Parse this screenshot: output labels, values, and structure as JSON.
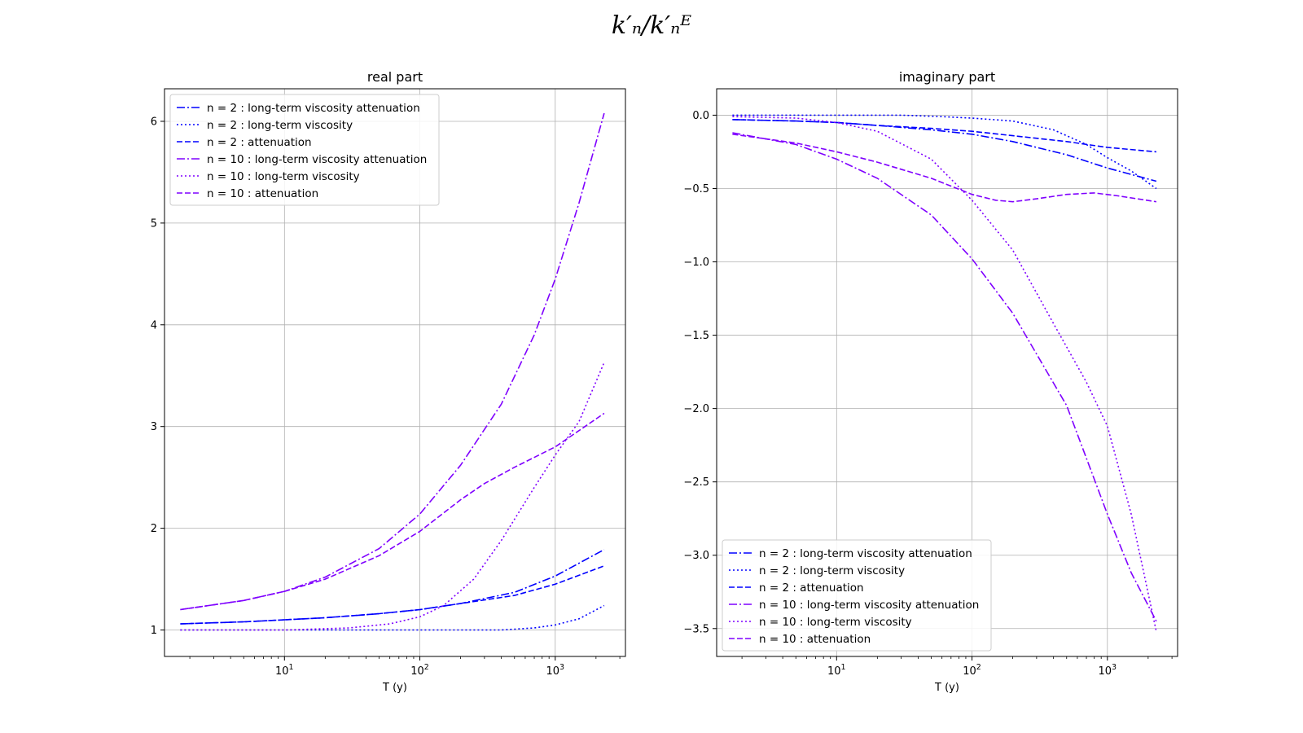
{
  "figure": {
    "suptitle": "k′ₙ/k′ₙᴱ"
  },
  "chart_data": [
    {
      "type": "line",
      "title": "real part",
      "xlabel": "T (y)",
      "ylabel": "",
      "xscale": "log",
      "xlim": [
        1.3,
        3300
      ],
      "ylim": [
        0.74,
        6.32
      ],
      "xticks": [
        {
          "value": 10,
          "base": "10",
          "exp": "1"
        },
        {
          "value": 100,
          "base": "10",
          "exp": "2"
        },
        {
          "value": 1000,
          "base": "10",
          "exp": "3"
        }
      ],
      "yticks": [
        1,
        2,
        3,
        4,
        5,
        6
      ],
      "grid": true,
      "legend_loc": "upper left",
      "series": [
        {
          "name": "n = 2 : long-term viscosity attenuation",
          "color": "#0000ff",
          "dash": "dashdot",
          "x": [
            1.7,
            5,
            10,
            20,
            50,
            100,
            200,
            500,
            1000,
            2300
          ],
          "y": [
            1.06,
            1.08,
            1.1,
            1.12,
            1.16,
            1.2,
            1.26,
            1.37,
            1.53,
            1.79
          ]
        },
        {
          "name": "n = 2 : long-term viscosity",
          "color": "#0000ff",
          "dash": "dotted",
          "x": [
            1.7,
            10,
            50,
            100,
            200,
            400,
            700,
            1000,
            1500,
            2300
          ],
          "y": [
            1.0,
            1.0,
            1.0,
            1.0,
            1.0,
            1.0,
            1.02,
            1.05,
            1.11,
            1.24
          ]
        },
        {
          "name": "n = 2 :  attenuation",
          "color": "#0000ff",
          "dash": "dashed",
          "x": [
            1.7,
            5,
            10,
            20,
            50,
            100,
            200,
            500,
            1000,
            2300
          ],
          "y": [
            1.06,
            1.08,
            1.1,
            1.12,
            1.16,
            1.2,
            1.26,
            1.34,
            1.45,
            1.63
          ]
        },
        {
          "name": "n = 10 : long-term viscosity attenuation",
          "color": "#7f00ff",
          "dash": "dashdot",
          "x": [
            1.7,
            5,
            10,
            20,
            50,
            100,
            200,
            400,
            700,
            1000,
            1500,
            2300
          ],
          "y": [
            1.2,
            1.29,
            1.38,
            1.52,
            1.8,
            2.14,
            2.62,
            3.22,
            3.9,
            4.45,
            5.2,
            6.08
          ]
        },
        {
          "name": "n = 10 : long-term viscosity",
          "color": "#7f00ff",
          "dash": "dotted",
          "x": [
            1.7,
            10,
            30,
            60,
            100,
            150,
            250,
            400,
            700,
            1000,
            1500,
            2300
          ],
          "y": [
            1.0,
            1.0,
            1.02,
            1.06,
            1.13,
            1.24,
            1.5,
            1.88,
            2.4,
            2.72,
            3.05,
            3.63
          ]
        },
        {
          "name": "n = 10 :  attenuation",
          "color": "#7f00ff",
          "dash": "dashed",
          "x": [
            1.7,
            5,
            10,
            20,
            50,
            100,
            200,
            300,
            500,
            1000,
            2300
          ],
          "y": [
            1.2,
            1.29,
            1.38,
            1.5,
            1.73,
            1.97,
            2.28,
            2.44,
            2.6,
            2.8,
            3.13
          ]
        }
      ]
    },
    {
      "type": "line",
      "title": "imaginary part",
      "xlabel": "T (y)",
      "ylabel": "",
      "xscale": "log",
      "xlim": [
        1.3,
        3300
      ],
      "ylim": [
        -3.69,
        0.18
      ],
      "xticks": [
        {
          "value": 10,
          "base": "10",
          "exp": "1"
        },
        {
          "value": 100,
          "base": "10",
          "exp": "2"
        },
        {
          "value": 1000,
          "base": "10",
          "exp": "3"
        }
      ],
      "yticks": [
        {
          "value": 0.0,
          "label": "0.0"
        },
        {
          "value": -0.5,
          "label": "−0.5"
        },
        {
          "value": -1.0,
          "label": "−1.0"
        },
        {
          "value": -1.5,
          "label": "−1.5"
        },
        {
          "value": -2.0,
          "label": "−2.0"
        },
        {
          "value": -2.5,
          "label": "−2.5"
        },
        {
          "value": -3.0,
          "label": "−3.0"
        },
        {
          "value": -3.5,
          "label": "−3.5"
        }
      ],
      "grid": true,
      "legend_loc": "lower left",
      "series": [
        {
          "name": "n = 2 : long-term viscosity attenuation",
          "color": "#0000ff",
          "dash": "dashdot",
          "x": [
            1.7,
            5,
            10,
            20,
            50,
            100,
            200,
            500,
            1000,
            2300
          ],
          "y": [
            -0.03,
            -0.04,
            -0.05,
            -0.07,
            -0.1,
            -0.13,
            -0.18,
            -0.27,
            -0.36,
            -0.45
          ]
        },
        {
          "name": "n = 2 : long-term viscosity",
          "color": "#0000ff",
          "dash": "dotted",
          "x": [
            1.7,
            10,
            30,
            60,
            100,
            200,
            400,
            700,
            1000,
            1500,
            2300
          ],
          "y": [
            0.0,
            0.0,
            0.0,
            -0.01,
            -0.02,
            -0.04,
            -0.1,
            -0.2,
            -0.29,
            -0.38,
            -0.5
          ]
        },
        {
          "name": "n = 2 :  attenuation",
          "color": "#0000ff",
          "dash": "dashed",
          "x": [
            1.7,
            5,
            10,
            20,
            50,
            100,
            200,
            500,
            1000,
            2300
          ],
          "y": [
            -0.03,
            -0.04,
            -0.05,
            -0.07,
            -0.09,
            -0.11,
            -0.14,
            -0.18,
            -0.22,
            -0.25
          ]
        },
        {
          "name": "n = 10 : long-term viscosity attenuation",
          "color": "#7f00ff",
          "dash": "dashdot",
          "x": [
            1.7,
            5,
            10,
            20,
            50,
            100,
            200,
            500,
            1000,
            1500,
            2300
          ],
          "y": [
            -0.12,
            -0.2,
            -0.3,
            -0.43,
            -0.68,
            -0.98,
            -1.35,
            -1.98,
            -2.72,
            -3.12,
            -3.45
          ]
        },
        {
          "name": "n = 10 : long-term viscosity",
          "color": "#7f00ff",
          "dash": "dotted",
          "x": [
            1.7,
            5,
            10,
            20,
            50,
            100,
            200,
            400,
            700,
            1000,
            1500,
            2300
          ],
          "y": [
            -0.01,
            -0.02,
            -0.05,
            -0.11,
            -0.3,
            -0.58,
            -0.92,
            -1.42,
            -1.82,
            -2.12,
            -2.72,
            -3.52
          ]
        },
        {
          "name": "n = 10 :  attenuation",
          "color": "#7f00ff",
          "dash": "dashed",
          "x": [
            1.7,
            5,
            10,
            20,
            50,
            100,
            150,
            200,
            300,
            500,
            800,
            1200,
            2300
          ],
          "y": [
            -0.13,
            -0.19,
            -0.25,
            -0.32,
            -0.43,
            -0.54,
            -0.58,
            -0.59,
            -0.57,
            -0.54,
            -0.53,
            -0.55,
            -0.59
          ]
        }
      ]
    }
  ]
}
